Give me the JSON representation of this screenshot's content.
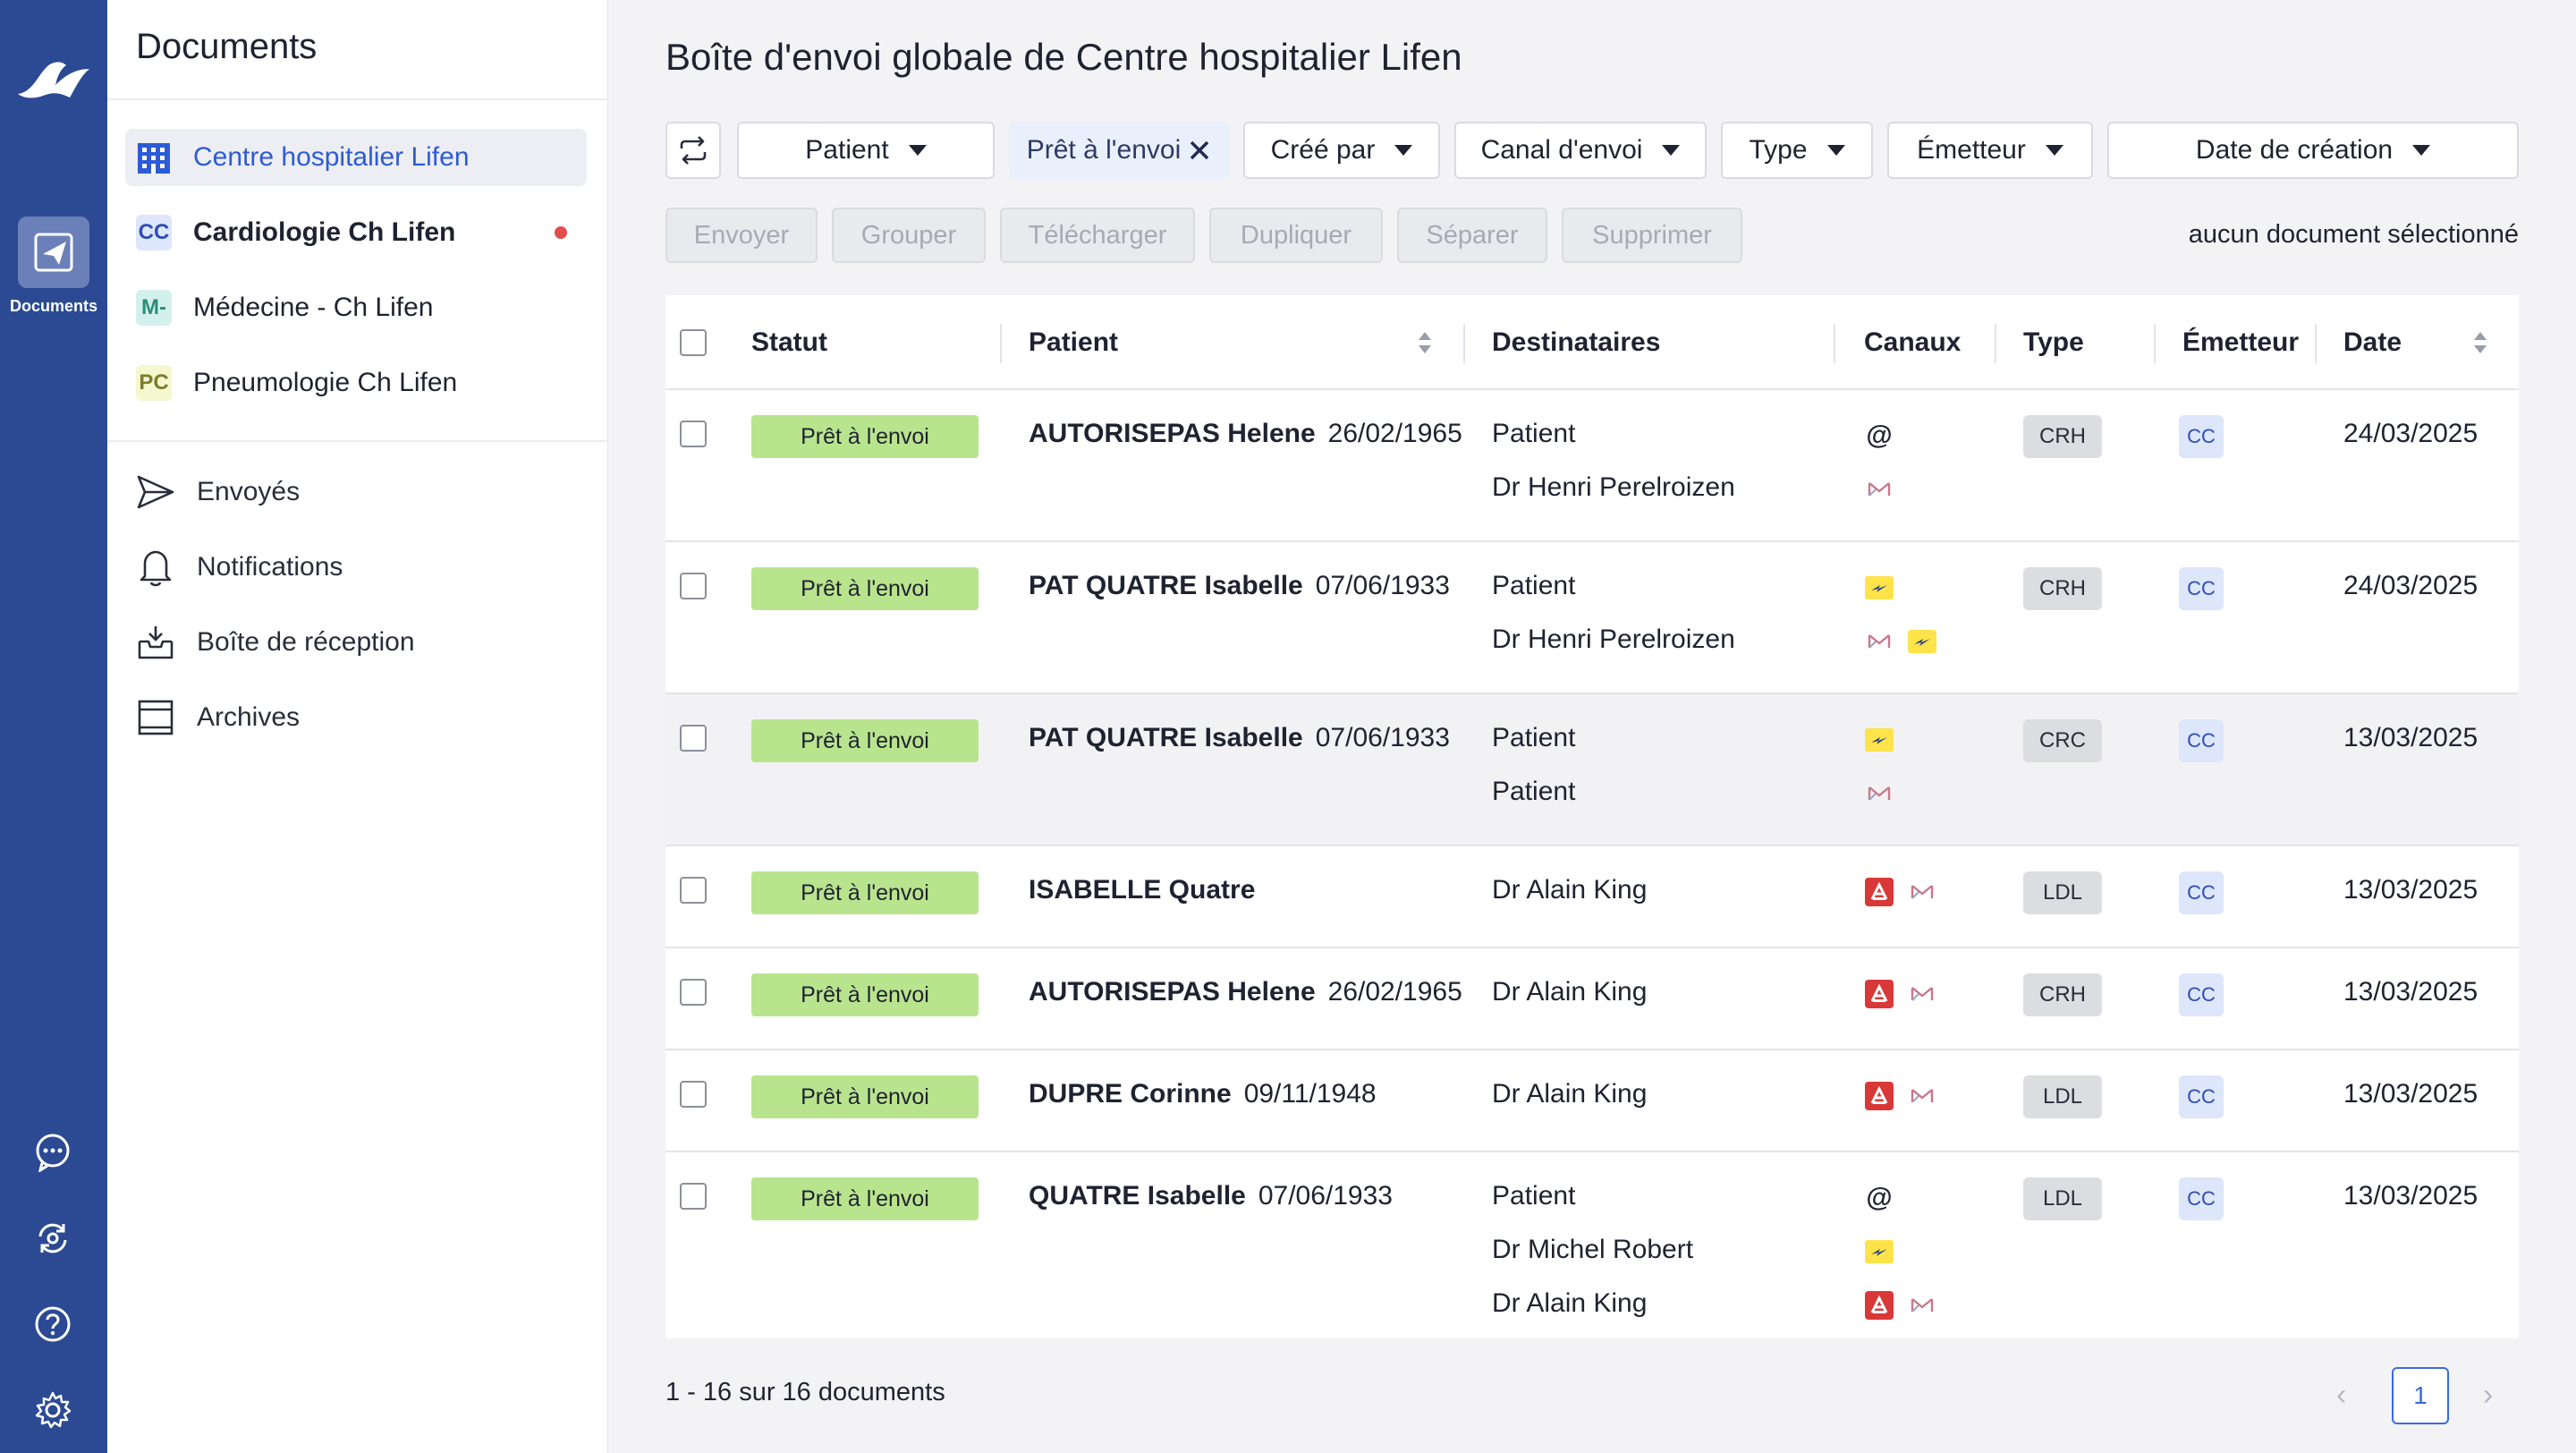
{
  "rail": {
    "documents_label": "Documents",
    "icons": [
      "chat-icon",
      "sync-icon",
      "help-icon",
      "settings-icon"
    ]
  },
  "sidebar": {
    "title": "Documents",
    "organizations": [
      {
        "badge": "",
        "label": "Centre hospitalier Lifen",
        "active": true,
        "bold": false,
        "dot": false
      },
      {
        "badge": "CC",
        "label": "Cardiologie Ch Lifen",
        "active": false,
        "bold": true,
        "dot": true,
        "badge_bg": "#dde6fb",
        "badge_color": "#2d4db8"
      },
      {
        "badge": "M-",
        "label": "Médecine - Ch Lifen",
        "active": false,
        "bold": false,
        "dot": false,
        "badge_bg": "#d3f1ec",
        "badge_color": "#2f8c7c"
      },
      {
        "badge": "PC",
        "label": "Pneumologie Ch Lifen",
        "active": false,
        "bold": false,
        "dot": false,
        "badge_bg": "#f5f7cf",
        "badge_color": "#7c7d2b"
      }
    ],
    "nav": [
      {
        "icon": "send-icon",
        "label": "Envoyés"
      },
      {
        "icon": "bell-icon",
        "label": "Notifications"
      },
      {
        "icon": "inbox-icon",
        "label": "Boîte de réception"
      },
      {
        "icon": "archive-icon",
        "label": "Archives"
      }
    ]
  },
  "header": {
    "title": "Boîte d'envoi globale de Centre hospitalier Lifen"
  },
  "filters": {
    "patient": "Patient",
    "status_chip": "Prêt à l'envoi",
    "created_by": "Créé par",
    "channel": "Canal d'envoi",
    "type": "Type",
    "sender": "Émetteur",
    "created_date": "Date de création"
  },
  "actions": {
    "send": "Envoyer",
    "group": "Grouper",
    "download": "Télécharger",
    "duplicate": "Dupliquer",
    "split": "Séparer",
    "delete": "Supprimer",
    "selection_info": "aucun document sélectionné"
  },
  "table": {
    "headers": {
      "status": "Statut",
      "patient": "Patient",
      "recipients": "Destinataires",
      "channels": "Canaux",
      "type": "Type",
      "sender": "Émetteur",
      "date": "Date"
    },
    "rows": [
      {
        "status": "Prêt à l'envoi",
        "patient": "AUTORISEPAS Helene",
        "dob": "26/02/1965",
        "recipients": [
          "Patient",
          "Dr Henri Perelroizen"
        ],
        "channels": [
          [
            "email"
          ],
          [
            "mssante-mail"
          ]
        ],
        "type": "CRH",
        "sender": "CC",
        "date": "24/03/2025"
      },
      {
        "status": "Prêt à l'envoi",
        "patient": "PAT QUATRE Isabelle",
        "dob": "07/06/1933",
        "recipients": [
          "Patient",
          "Dr Henri Perelroizen"
        ],
        "channels": [
          [
            "postal"
          ],
          [
            "mssante-mail",
            "postal"
          ]
        ],
        "type": "CRH",
        "sender": "CC",
        "date": "24/03/2025"
      },
      {
        "status": "Prêt à l'envoi",
        "patient": "PAT QUATRE Isabelle",
        "dob": "07/06/1933",
        "recipients": [
          "Patient",
          "Patient"
        ],
        "channels": [
          [
            "postal"
          ],
          [
            "mssante-mail"
          ]
        ],
        "type": "CRC",
        "sender": "CC",
        "date": "13/03/2025",
        "highlight": true
      },
      {
        "status": "Prêt à l'envoi",
        "patient": "ISABELLE Quatre",
        "dob": "",
        "recipients": [
          "Dr Alain King"
        ],
        "channels": [
          [
            "mssante",
            "mssante-mail"
          ]
        ],
        "type": "LDL",
        "sender": "CC",
        "date": "13/03/2025"
      },
      {
        "status": "Prêt à l'envoi",
        "patient": "AUTORISEPAS Helene",
        "dob": "26/02/1965",
        "recipients": [
          "Dr Alain King"
        ],
        "channels": [
          [
            "mssante",
            "mssante-mail"
          ]
        ],
        "type": "CRH",
        "sender": "CC",
        "date": "13/03/2025"
      },
      {
        "status": "Prêt à l'envoi",
        "patient": "DUPRE Corinne",
        "dob": "09/11/1948",
        "recipients": [
          "Dr Alain King"
        ],
        "channels": [
          [
            "mssante",
            "mssante-mail"
          ]
        ],
        "type": "LDL",
        "sender": "CC",
        "date": "13/03/2025"
      },
      {
        "status": "Prêt à l'envoi",
        "patient": "QUATRE Isabelle",
        "dob": "07/06/1933",
        "recipients": [
          "Patient",
          "Dr Michel Robert",
          "Dr Alain King"
        ],
        "channels": [
          [
            "email"
          ],
          [
            "postal"
          ],
          [
            "mssante",
            "mssante-mail"
          ]
        ],
        "type": "LDL",
        "sender": "CC",
        "date": "13/03/2025"
      }
    ]
  },
  "footer": {
    "count": "1 - 16 sur 16 documents",
    "current_page": "1",
    "prev": "‹",
    "next": "›"
  },
  "colors": {
    "rail": "#2b4a93",
    "accent": "#2d5bd7",
    "status_ready": "#b9e48e"
  }
}
